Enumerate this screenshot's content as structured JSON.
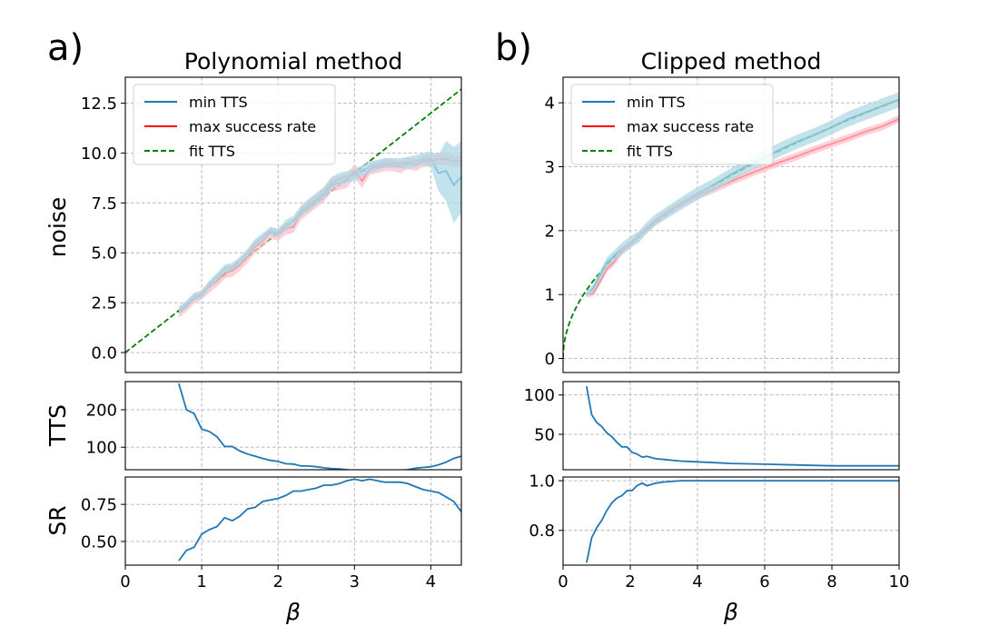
{
  "colors": {
    "min_tts": "#1f77b4",
    "max_sr": "#ff0000",
    "fit": "#008000",
    "band_min": "#add8e6",
    "band_max": "#ffc0cb"
  },
  "panels": [
    {
      "label": "a)",
      "title": "Polynomial method",
      "xlabel": "β",
      "xlim": [
        0,
        4.4
      ],
      "xticks": [
        0,
        1,
        2,
        3,
        4
      ],
      "legend": {
        "min_tts": "min TTS",
        "max_sr": "max success rate",
        "fit": "fit TTS"
      }
    },
    {
      "label": "b)",
      "title": "Clipped method",
      "xlabel": "β",
      "xlim": [
        0,
        10
      ],
      "xticks": [
        0,
        2,
        4,
        6,
        8,
        10
      ],
      "legend": {
        "min_tts": "min TTS",
        "max_sr": "max success rate",
        "fit": "fit TTS"
      }
    }
  ],
  "chart_data": [
    {
      "type": "line",
      "panel": "a) noise",
      "ylabel": "noise",
      "ylim": [
        -1.0,
        13.8
      ],
      "yticks": [
        0.0,
        2.5,
        5.0,
        7.5,
        10.0,
        12.5
      ],
      "ytick_labels": [
        "0.0",
        "2.5",
        "5.0",
        "7.5",
        "10.0",
        "12.5"
      ],
      "fit": {
        "name": "fit TTS",
        "x": [
          0,
          4.4
        ],
        "y": [
          0,
          13.2
        ]
      },
      "series": [
        {
          "name": "min TTS",
          "x": [
            0.7,
            0.8,
            0.9,
            1.0,
            1.1,
            1.2,
            1.3,
            1.4,
            1.5,
            1.6,
            1.7,
            1.8,
            1.9,
            2.0,
            2.1,
            2.2,
            2.3,
            2.4,
            2.5,
            2.6,
            2.7,
            2.8,
            2.9,
            3.0,
            3.1,
            3.2,
            3.3,
            3.4,
            3.5,
            3.6,
            3.7,
            3.8,
            3.9,
            4.0,
            4.1,
            4.2,
            4.3,
            4.4
          ],
          "y": [
            2.1,
            2.4,
            2.8,
            2.9,
            3.4,
            3.8,
            4.2,
            4.3,
            4.6,
            5.0,
            5.5,
            5.8,
            6.1,
            6.0,
            6.4,
            6.6,
            7.1,
            7.4,
            7.7,
            8.0,
            8.5,
            8.7,
            8.8,
            8.9,
            9.1,
            9.3,
            9.4,
            9.5,
            9.5,
            9.5,
            9.5,
            9.6,
            9.7,
            9.7,
            9.0,
            9.1,
            8.4,
            8.8
          ],
          "err": [
            0.2,
            0.2,
            0.2,
            0.2,
            0.2,
            0.2,
            0.2,
            0.2,
            0.2,
            0.2,
            0.2,
            0.2,
            0.2,
            0.2,
            0.25,
            0.25,
            0.25,
            0.3,
            0.3,
            0.3,
            0.3,
            0.3,
            0.3,
            0.3,
            0.3,
            0.3,
            0.25,
            0.25,
            0.25,
            0.25,
            0.3,
            0.3,
            0.3,
            0.4,
            0.9,
            1.5,
            1.9,
            1.8
          ]
        },
        {
          "name": "max success rate",
          "x": [
            0.7,
            0.8,
            0.9,
            1.0,
            1.1,
            1.2,
            1.3,
            1.4,
            1.5,
            1.6,
            1.7,
            1.8,
            1.9,
            2.0,
            2.1,
            2.2,
            2.3,
            2.4,
            2.5,
            2.6,
            2.7,
            2.8,
            2.9,
            3.0,
            3.1,
            3.2,
            3.3,
            3.4,
            3.5,
            3.6,
            3.7,
            3.8,
            3.9,
            4.0,
            4.1,
            4.2,
            4.3,
            4.4
          ],
          "y": [
            2.0,
            2.3,
            2.7,
            2.9,
            3.3,
            3.6,
            4.0,
            4.1,
            4.4,
            4.8,
            5.3,
            5.6,
            6.0,
            5.9,
            6.2,
            6.3,
            7.0,
            7.3,
            7.6,
            7.9,
            8.4,
            8.5,
            8.6,
            9.1,
            8.6,
            9.2,
            9.3,
            9.4,
            9.4,
            9.3,
            9.5,
            9.4,
            9.6,
            9.6,
            9.7,
            9.7,
            9.6,
            9.6
          ],
          "err": [
            0.25,
            0.25,
            0.25,
            0.25,
            0.3,
            0.3,
            0.3,
            0.3,
            0.3,
            0.3,
            0.3,
            0.3,
            0.3,
            0.3,
            0.3,
            0.3,
            0.35,
            0.35,
            0.35,
            0.35,
            0.35,
            0.35,
            0.35,
            0.35,
            0.35,
            0.3,
            0.3,
            0.3,
            0.3,
            0.3,
            0.3,
            0.3,
            0.3,
            0.3,
            0.3,
            0.3,
            0.3,
            0.3
          ]
        }
      ]
    },
    {
      "type": "line",
      "panel": "a) TTS",
      "ylabel": "TTS",
      "ylim": [
        40,
        275
      ],
      "yticks": [
        100,
        200
      ],
      "ytick_labels": [
        "100",
        "200"
      ],
      "series": [
        {
          "name": "TTS",
          "x": [
            0.7,
            0.8,
            0.9,
            1.0,
            1.1,
            1.2,
            1.3,
            1.4,
            1.5,
            1.6,
            1.7,
            1.8,
            1.9,
            2.0,
            2.1,
            2.2,
            2.3,
            2.4,
            2.5,
            2.6,
            2.7,
            2.8,
            2.9,
            3.0,
            3.1,
            3.2,
            3.3,
            3.4,
            3.5,
            3.6,
            3.7,
            3.8,
            3.9,
            4.0,
            4.1,
            4.2,
            4.3,
            4.4
          ],
          "y": [
            270,
            200,
            190,
            148,
            142,
            128,
            102,
            102,
            90,
            82,
            76,
            70,
            65,
            62,
            56,
            55,
            50,
            50,
            48,
            45,
            43,
            42,
            40,
            38,
            38,
            36,
            36,
            37,
            37,
            38,
            40,
            44,
            46,
            48,
            53,
            60,
            70,
            76
          ]
        }
      ]
    },
    {
      "type": "line",
      "panel": "a) SR",
      "ylabel": "SR",
      "ylim": [
        0.34,
        0.935
      ],
      "yticks": [
        0.5,
        0.75
      ],
      "ytick_labels": [
        "0.50",
        "0.75"
      ],
      "series": [
        {
          "name": "SR",
          "x": [
            0.7,
            0.8,
            0.9,
            1.0,
            1.1,
            1.2,
            1.3,
            1.4,
            1.5,
            1.6,
            1.7,
            1.8,
            1.9,
            2.0,
            2.1,
            2.2,
            2.3,
            2.4,
            2.5,
            2.6,
            2.7,
            2.8,
            2.9,
            3.0,
            3.1,
            3.2,
            3.3,
            3.4,
            3.5,
            3.6,
            3.7,
            3.8,
            3.9,
            4.0,
            4.1,
            4.2,
            4.3,
            4.4
          ],
          "y": [
            0.37,
            0.44,
            0.46,
            0.55,
            0.58,
            0.6,
            0.66,
            0.64,
            0.67,
            0.72,
            0.73,
            0.77,
            0.78,
            0.79,
            0.81,
            0.84,
            0.84,
            0.85,
            0.86,
            0.88,
            0.88,
            0.89,
            0.91,
            0.92,
            0.91,
            0.92,
            0.91,
            0.9,
            0.9,
            0.9,
            0.89,
            0.87,
            0.85,
            0.84,
            0.83,
            0.8,
            0.77,
            0.7
          ]
        }
      ]
    },
    {
      "type": "line",
      "panel": "b) noise",
      "ylabel": "",
      "ylim": [
        -0.22,
        4.4
      ],
      "yticks": [
        0,
        1,
        2,
        3,
        4
      ],
      "ytick_labels": [
        "0",
        "1",
        "2",
        "3",
        "4"
      ],
      "fit": {
        "name": "fit TTS",
        "formula": "1.28*sqrt(beta)",
        "coefficient": 1.28
      },
      "series": [
        {
          "name": "min TTS",
          "x": [
            0.7,
            0.9,
            1.1,
            1.3,
            1.5,
            1.75,
            2.0,
            2.25,
            2.5,
            2.75,
            3.0,
            3.5,
            4.0,
            4.5,
            5.0,
            5.5,
            6.0,
            6.5,
            7.0,
            7.5,
            8.0,
            8.5,
            9.0,
            9.5,
            10.0
          ],
          "y": [
            1.0,
            1.1,
            1.3,
            1.5,
            1.6,
            1.72,
            1.82,
            1.9,
            2.05,
            2.17,
            2.25,
            2.42,
            2.58,
            2.72,
            2.88,
            3.02,
            3.15,
            3.28,
            3.4,
            3.5,
            3.62,
            3.75,
            3.85,
            3.95,
            4.05
          ],
          "err": [
            0.05,
            0.06,
            0.07,
            0.08,
            0.08,
            0.09,
            0.09,
            0.09,
            0.09,
            0.09,
            0.09,
            0.1,
            0.1,
            0.1,
            0.1,
            0.1,
            0.11,
            0.11,
            0.11,
            0.11,
            0.11,
            0.12,
            0.12,
            0.12,
            0.12
          ]
        },
        {
          "name": "max success rate",
          "x": [
            0.7,
            0.9,
            1.1,
            1.3,
            1.5,
            1.75,
            2.0,
            2.25,
            2.5,
            2.75,
            3.0,
            3.5,
            4.0,
            4.5,
            5.0,
            5.5,
            6.0,
            6.5,
            7.0,
            7.5,
            8.0,
            8.5,
            9.0,
            9.5,
            10.0
          ],
          "y": [
            1.0,
            1.02,
            1.2,
            1.4,
            1.5,
            1.68,
            1.78,
            1.92,
            2.02,
            2.15,
            2.25,
            2.42,
            2.55,
            2.65,
            2.77,
            2.88,
            2.98,
            3.08,
            3.17,
            3.27,
            3.36,
            3.45,
            3.55,
            3.63,
            3.75
          ],
          "err": [
            0.04,
            0.05,
            0.05,
            0.05,
            0.06,
            0.06,
            0.06,
            0.06,
            0.06,
            0.06,
            0.06,
            0.06,
            0.06,
            0.06,
            0.06,
            0.06,
            0.06,
            0.06,
            0.06,
            0.06,
            0.06,
            0.06,
            0.06,
            0.06,
            0.06
          ]
        }
      ]
    },
    {
      "type": "line",
      "panel": "b) TTS",
      "ylabel": "",
      "ylim": [
        5,
        117
      ],
      "yticks": [
        50,
        100
      ],
      "ytick_labels": [
        "50",
        "100"
      ],
      "series": [
        {
          "name": "TTS",
          "x": [
            0.7,
            0.85,
            1.0,
            1.15,
            1.3,
            1.45,
            1.6,
            1.75,
            1.9,
            2.05,
            2.2,
            2.35,
            2.5,
            2.75,
            3.0,
            3.5,
            4.0,
            4.5,
            5.0,
            6.0,
            7.0,
            8.0,
            9.0,
            10.0
          ],
          "y": [
            111,
            75,
            65,
            60,
            52,
            47,
            40,
            34,
            34,
            27,
            25,
            21,
            22,
            19,
            18,
            16,
            15,
            14,
            13,
            12,
            11,
            10,
            10,
            10
          ]
        }
      ]
    },
    {
      "type": "line",
      "panel": "b) SR",
      "ylabel": "",
      "ylim": [
        0.66,
        1.015
      ],
      "yticks": [
        0.8,
        1.0
      ],
      "ytick_labels": [
        "0.8",
        "1.0"
      ],
      "series": [
        {
          "name": "SR",
          "x": [
            0.7,
            0.85,
            1.0,
            1.15,
            1.3,
            1.45,
            1.6,
            1.75,
            1.9,
            2.05,
            2.2,
            2.35,
            2.5,
            2.75,
            3.0,
            3.5,
            4.0,
            5.0,
            6.0,
            7.0,
            8.0,
            9.0,
            10.0
          ],
          "y": [
            0.67,
            0.77,
            0.81,
            0.84,
            0.88,
            0.91,
            0.93,
            0.94,
            0.96,
            0.96,
            0.98,
            0.99,
            0.98,
            0.99,
            0.995,
            1.0,
            1.0,
            1.0,
            1.0,
            1.0,
            1.0,
            1.0,
            1.0
          ]
        }
      ]
    }
  ]
}
